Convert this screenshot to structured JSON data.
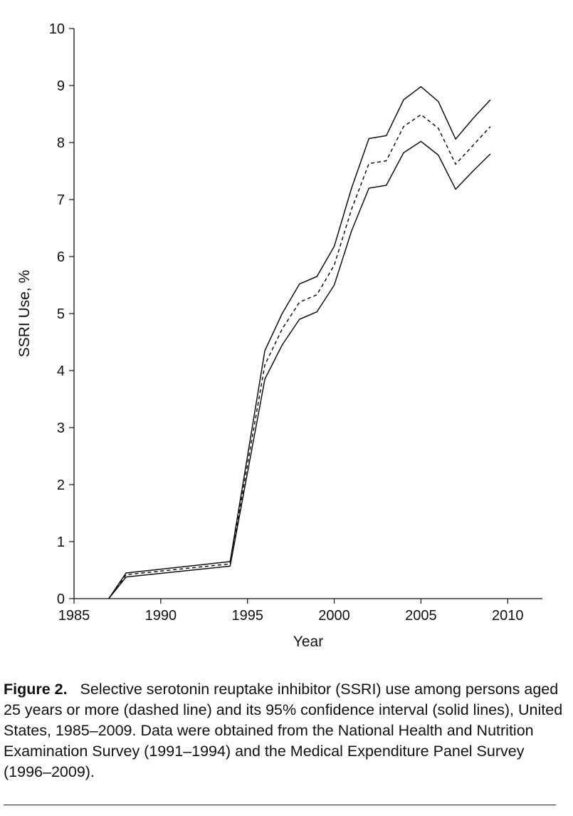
{
  "chart_data": {
    "type": "line",
    "xlabel": "Year",
    "ylabel": "SSRI Use, %",
    "xlim": [
      1985,
      2012
    ],
    "ylim": [
      0,
      10
    ],
    "xticks": [
      "1985",
      "1990",
      "1995",
      "2000",
      "2005",
      "2010"
    ],
    "yticks": [
      "0",
      "1",
      "2",
      "3",
      "4",
      "5",
      "6",
      "7",
      "8",
      "9",
      "10"
    ],
    "series": [
      {
        "style": "solid",
        "x": [
          1987,
          1988,
          1994,
          1996,
          1997,
          1998,
          1999,
          2000,
          2001,
          2002,
          2003,
          2004,
          2005,
          2006,
          2007,
          2008,
          2009
        ],
        "y": [
          0,
          0.45,
          0.65,
          4.35,
          5.0,
          5.52,
          5.65,
          6.18,
          7.2,
          8.07,
          8.12,
          8.75,
          8.98,
          8.72,
          8.06,
          8.42,
          8.75
        ]
      },
      {
        "style": "dashed",
        "x": [
          1987,
          1988,
          1994,
          1996,
          1997,
          1998,
          1999,
          2000,
          2001,
          2002,
          2003,
          2004,
          2005,
          2006,
          2007,
          2008,
          2009
        ],
        "y": [
          0,
          0.42,
          0.61,
          4.1,
          4.73,
          5.2,
          5.33,
          5.85,
          6.83,
          7.63,
          7.68,
          8.28,
          8.49,
          8.25,
          7.62,
          7.95,
          8.28
        ]
      },
      {
        "style": "solid",
        "x": [
          1987,
          1988,
          1994,
          1996,
          1997,
          1998,
          1999,
          2000,
          2001,
          2002,
          2003,
          2004,
          2005,
          2006,
          2007,
          2008,
          2009
        ],
        "y": [
          0,
          0.38,
          0.57,
          3.85,
          4.45,
          4.9,
          5.03,
          5.5,
          6.45,
          7.2,
          7.25,
          7.82,
          8.02,
          7.78,
          7.18,
          7.5,
          7.8
        ]
      }
    ]
  },
  "caption": {
    "label": "Figure 2.",
    "text": "Selective serotonin reuptake inhibitor (SSRI) use among persons aged 25 years or more (dashed line) and its 95% confidence interval (solid lines), United States, 1985–2009. Data were obtained from the National Health and Nutrition Examination Survey (1991–1994) and the Medical Expenditure Panel Survey (1996–2009)."
  }
}
